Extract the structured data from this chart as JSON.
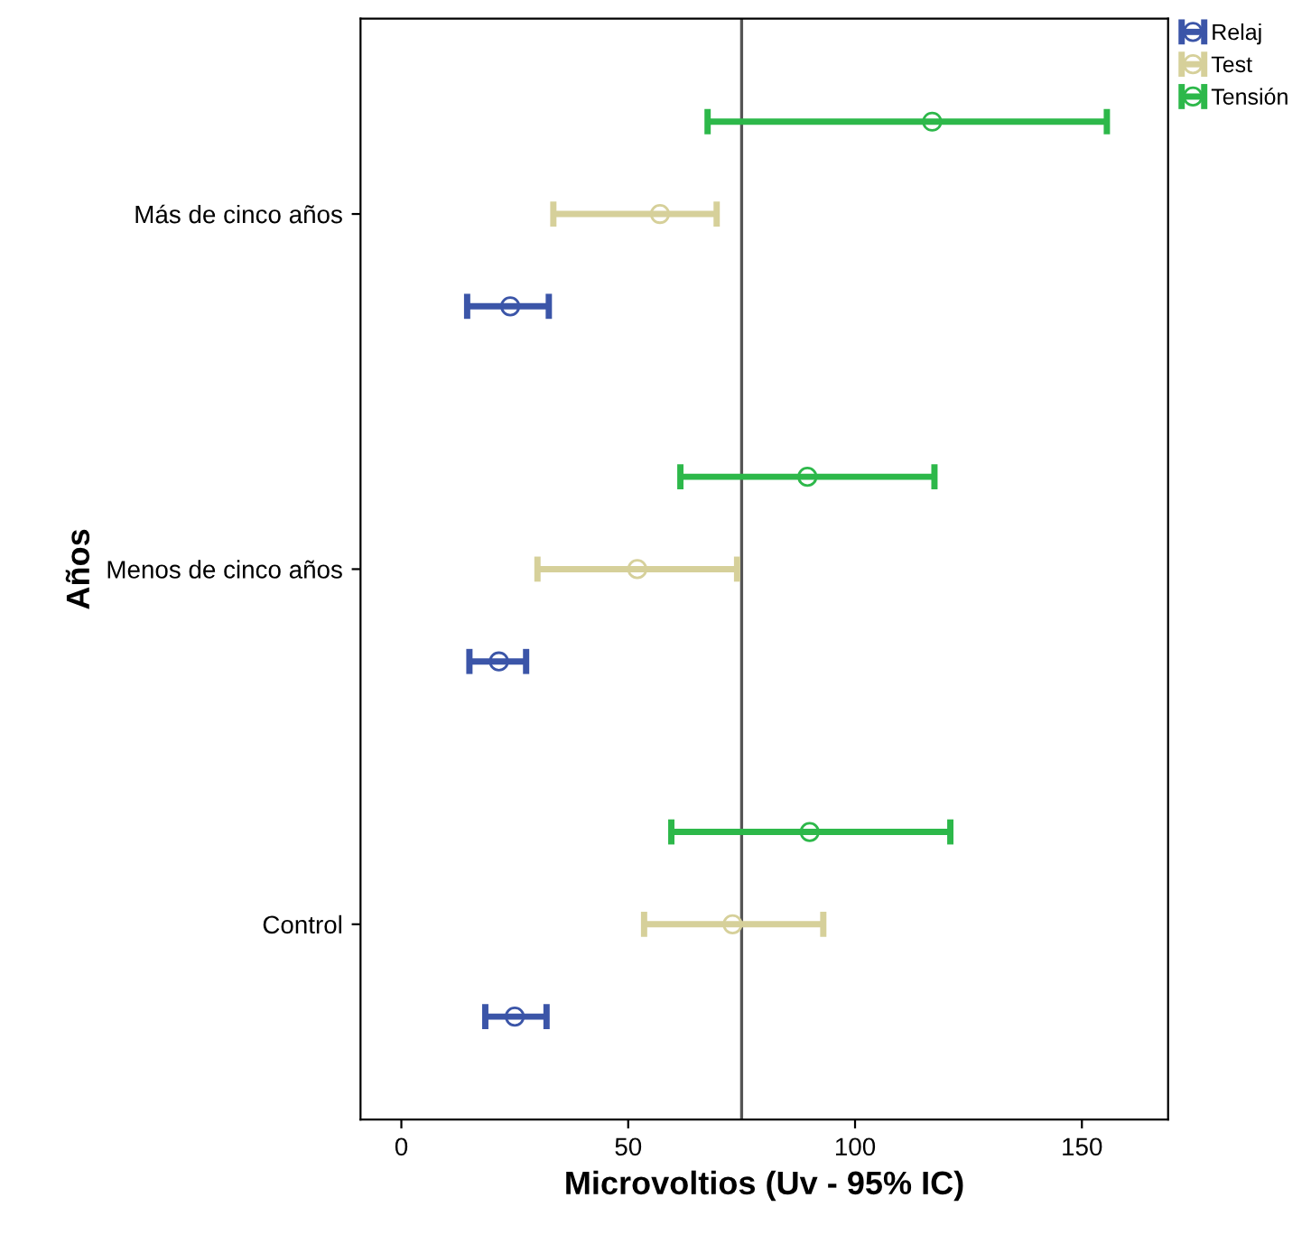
{
  "chart_data": {
    "type": "scatter",
    "orientation": "horizontal",
    "xlabel": "Microvoltios (Uv - 95% IC)",
    "ylabel": "Años",
    "categories": [
      "Más de cinco años",
      "Menos de cinco años",
      "Control"
    ],
    "series": [
      {
        "name": "Relaj",
        "color": "#3b55a8",
        "values": [
          24,
          21.5,
          25
        ],
        "errors": [
          [
            14.5,
            32.5
          ],
          [
            15,
            27.5
          ],
          [
            18.5,
            32
          ]
        ]
      },
      {
        "name": "Test",
        "color": "#d6d09a",
        "values": [
          57,
          52,
          73
        ],
        "errors": [
          [
            33.5,
            69.5
          ],
          [
            30,
            74
          ],
          [
            53.5,
            93
          ]
        ]
      },
      {
        "name": "Tensión",
        "color": "#2db84a",
        "values": [
          117,
          89.5,
          90
        ],
        "errors": [
          [
            67.5,
            155.5
          ],
          [
            61.5,
            117.5
          ],
          [
            59.5,
            121
          ]
        ]
      }
    ],
    "xlim": [
      -9,
      169
    ],
    "xticks": [
      0,
      50,
      100,
      150
    ],
    "ref_lines": [
      {
        "axis": "x",
        "value": 75,
        "color": "#555555"
      }
    ],
    "marker": "circle",
    "grid": false,
    "legend": "top right"
  }
}
